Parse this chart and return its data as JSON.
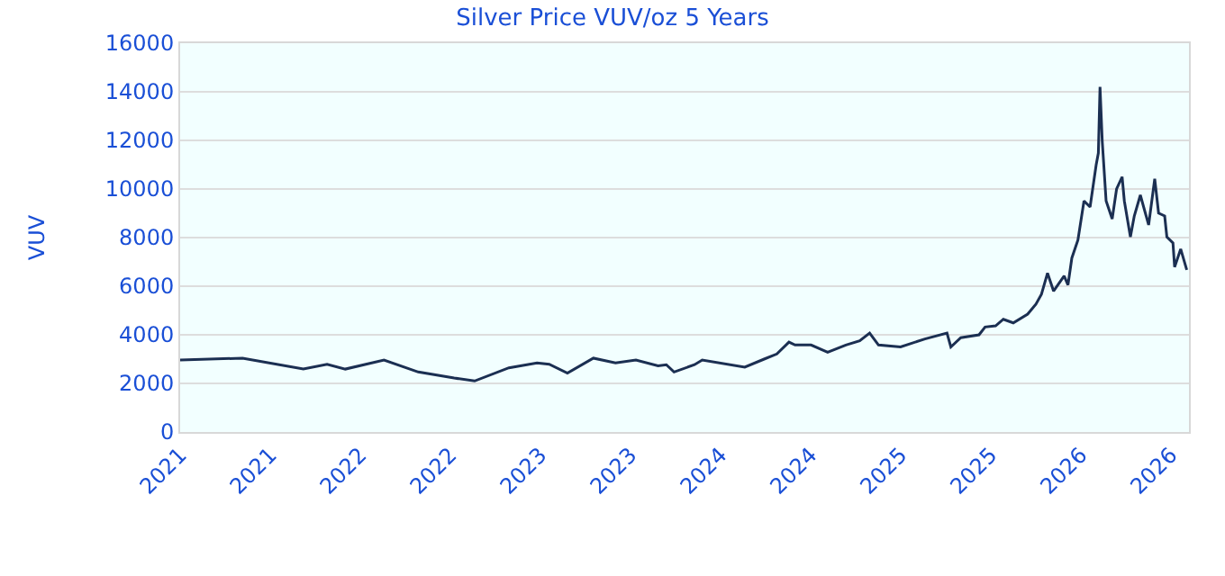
{
  "chart_data": {
    "type": "line",
    "title": "Silver Price VUV/oz 5 Years",
    "ylabel": "VUV",
    "x": [
      "2021-07-18",
      "2021-11-08",
      "2022-02-26",
      "2022-04-10",
      "2022-05-13",
      "2022-07-22",
      "2022-09-22",
      "2022-11-26",
      "2023-01-02",
      "2023-03-05",
      "2023-04-25",
      "2023-05-17",
      "2023-06-19",
      "2023-08-05",
      "2023-09-14",
      "2023-10-21",
      "2023-11-30",
      "2023-12-15",
      "2023-12-29",
      "2024-02-04",
      "2024-02-18",
      "2024-05-05",
      "2024-06-10",
      "2024-07-02",
      "2024-07-24",
      "2024-08-04",
      "2024-09-02",
      "2024-10-02",
      "2024-11-04",
      "2024-11-29",
      "2024-12-17",
      "2025-01-02",
      "2025-02-11",
      "2025-03-27",
      "2025-05-06",
      "2025-05-13",
      "2025-05-31",
      "2025-07-03",
      "2025-07-14",
      "2025-08-02",
      "2025-08-16",
      "2025-09-03",
      "2025-09-29",
      "2025-10-14",
      "2025-10-24",
      "2025-11-04",
      "2025-11-15",
      "2025-12-04",
      "2025-12-11",
      "2025-12-18",
      "2025-12-29",
      "2026-01-09",
      "2026-01-20",
      "2026-01-31",
      "2026-02-04",
      "2026-02-07",
      "2026-02-11",
      "2026-02-18",
      "2026-03-01",
      "2026-03-09",
      "2026-03-19",
      "2026-03-23",
      "2026-04-03",
      "2026-04-10",
      "2026-04-21",
      "2026-05-06",
      "2026-05-17",
      "2026-05-24",
      "2026-06-04",
      "2026-06-08",
      "2026-06-19",
      "2026-06-22",
      "2026-07-03",
      "2026-07-14"
    ],
    "series": [
      {
        "color": "#1b2f52",
        "values": [
          2960,
          3040,
          2590,
          2790,
          2590,
          2960,
          2470,
          2220,
          2100,
          2640,
          2840,
          2790,
          2420,
          3040,
          2840,
          2960,
          2720,
          2770,
          2470,
          2770,
          2960,
          2670,
          3010,
          3210,
          3700,
          3580,
          3580,
          3280,
          3580,
          3750,
          4070,
          3580,
          3500,
          3830,
          4070,
          3500,
          3880,
          4000,
          4320,
          4370,
          4640,
          4490,
          4850,
          5260,
          5670,
          6540,
          5800,
          6420,
          6050,
          7160,
          7900,
          9510,
          9260,
          10990,
          11480,
          14200,
          11980,
          9510,
          8770,
          10000,
          10500,
          9510,
          8030,
          8890,
          9750,
          8520,
          10420,
          9010,
          8890,
          8030,
          7780,
          6790,
          7530,
          6670
        ]
      }
    ],
    "xlim": [
      "2021-07-18",
      "2026-07-18"
    ],
    "xticks": [
      {
        "value": "2021-07-18",
        "label": "2021"
      },
      {
        "value": "2021-12-28",
        "label": "2021"
      },
      {
        "value": "2022-06-09",
        "label": "2022"
      },
      {
        "value": "2022-11-19",
        "label": "2022"
      },
      {
        "value": "2023-05-01",
        "label": "2023"
      },
      {
        "value": "2023-10-11",
        "label": "2023"
      },
      {
        "value": "2024-03-22",
        "label": "2024"
      },
      {
        "value": "2024-09-01",
        "label": "2024"
      },
      {
        "value": "2025-02-11",
        "label": "2025"
      },
      {
        "value": "2025-07-24",
        "label": "2025"
      },
      {
        "value": "2026-01-03",
        "label": "2026"
      },
      {
        "value": "2026-06-15",
        "label": "2026"
      }
    ],
    "ylim": [
      0,
      16000
    ],
    "yticks": [
      0,
      2000,
      4000,
      6000,
      8000,
      10000,
      12000,
      14000,
      16000
    ],
    "grid": "y",
    "marker": "none",
    "line_style": "solid"
  }
}
